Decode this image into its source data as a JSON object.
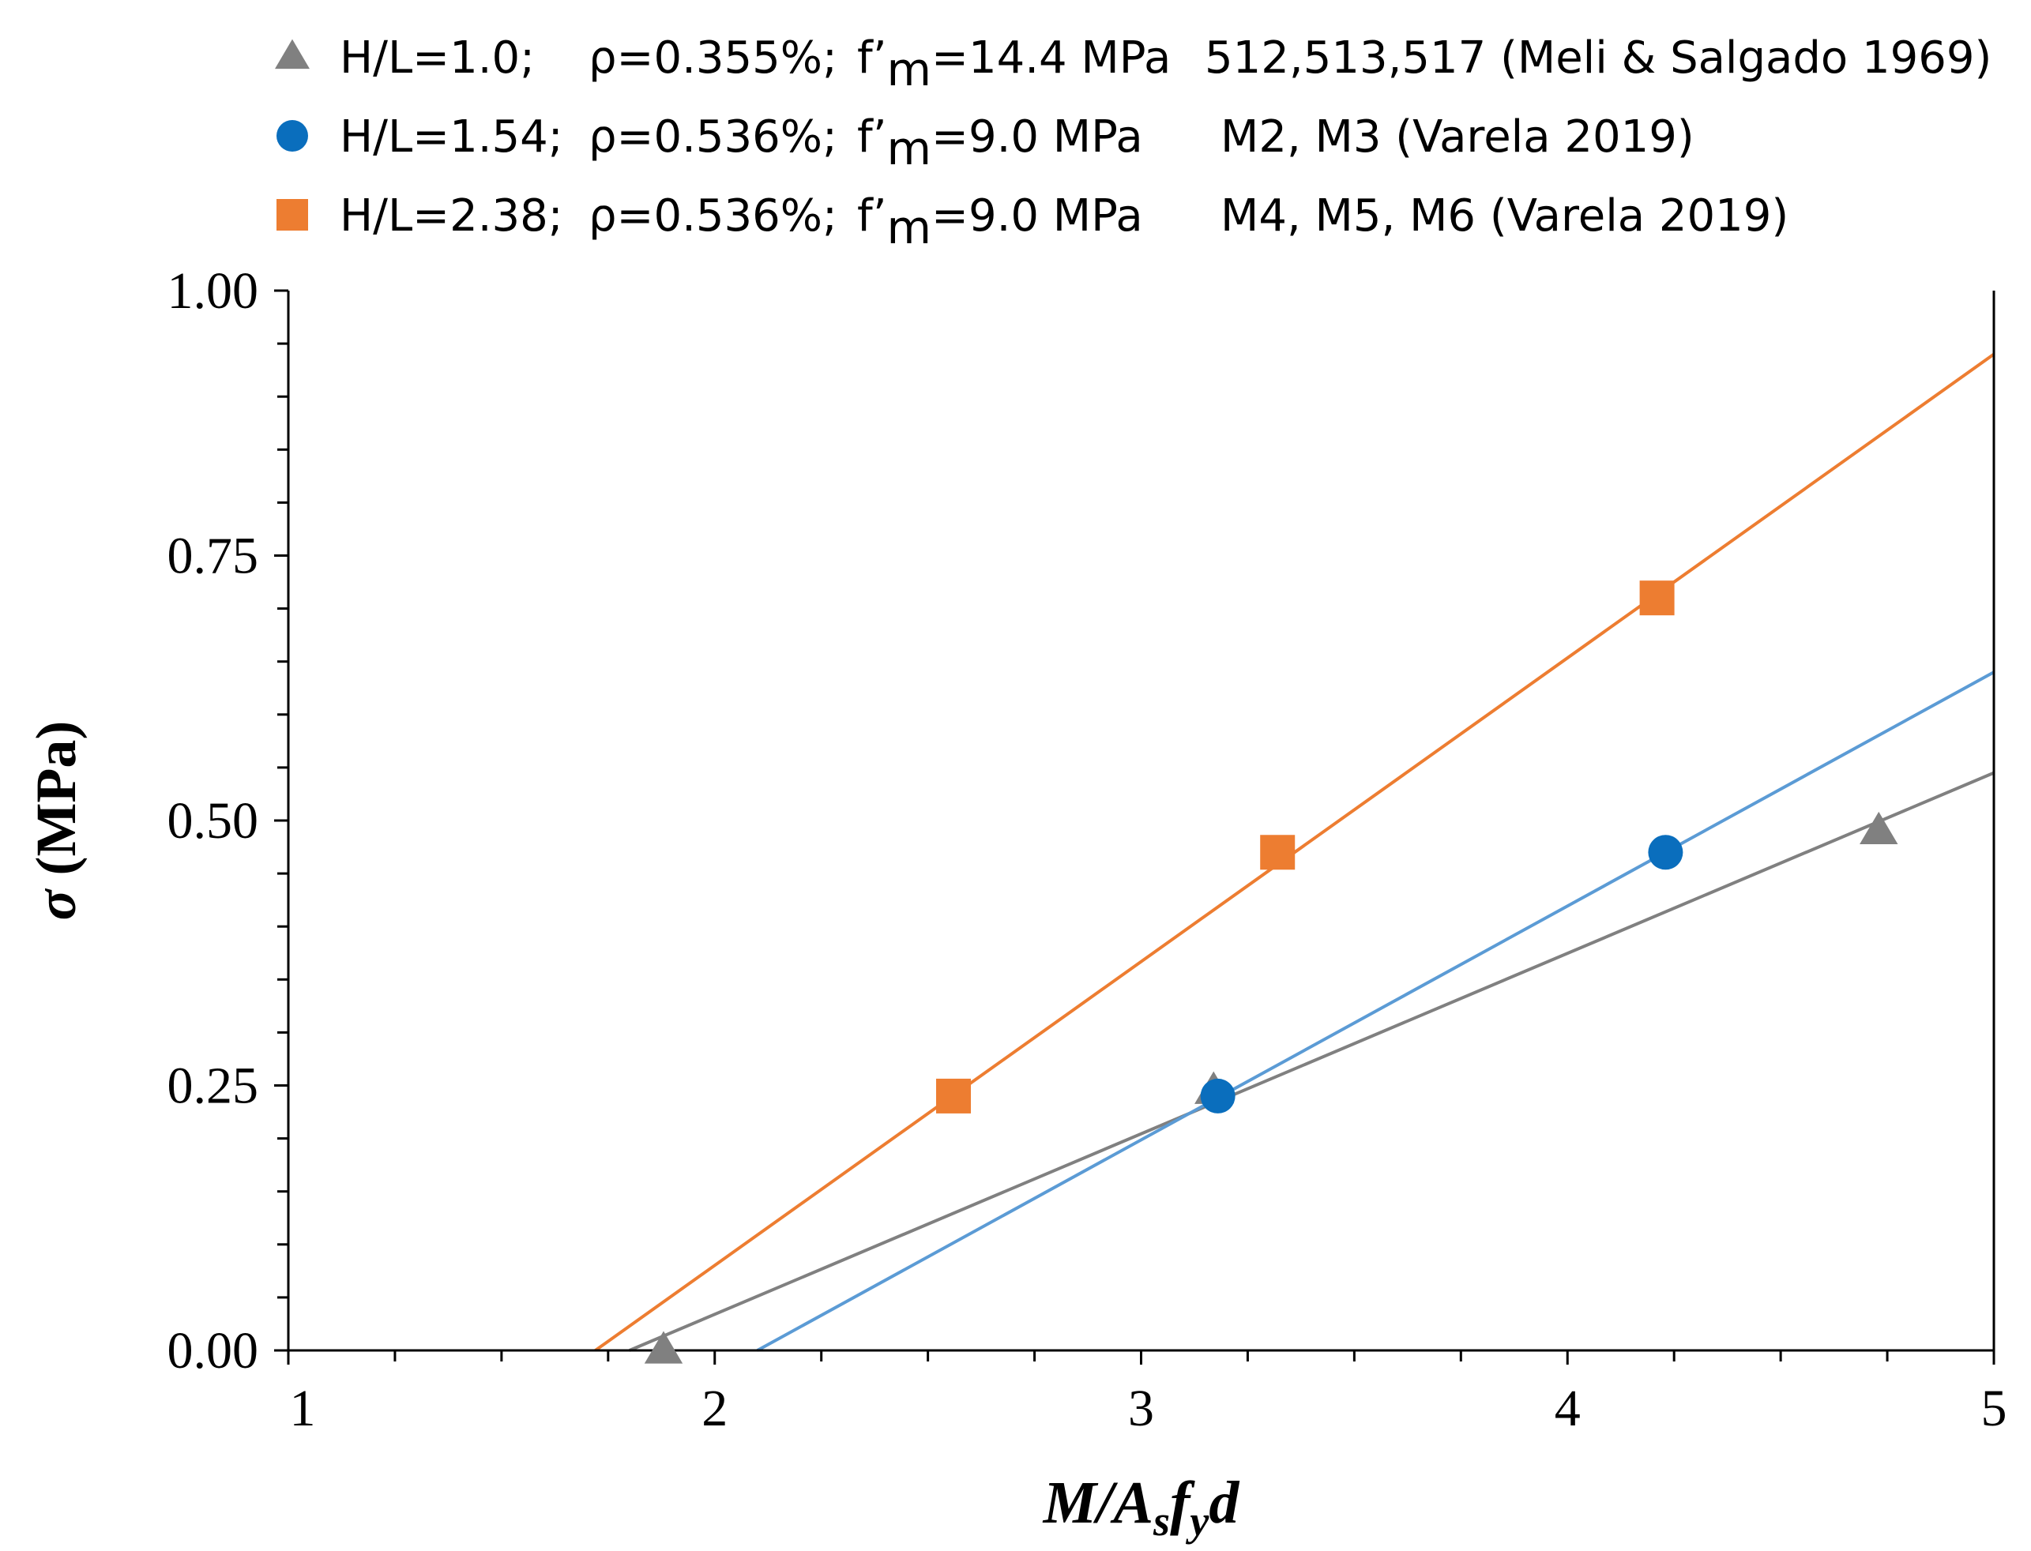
{
  "chart_data": {
    "type": "scatter",
    "title": "",
    "xlabel": "M/A_s f_y d",
    "xlabel_parts": {
      "main": "M/A",
      "sub1": "s",
      "mid": "f",
      "sub2": "y",
      "end": "d"
    },
    "ylabel": "σ (MPa)",
    "ylabel_parts": {
      "symbol": "σ",
      "unit": "(MPa)"
    },
    "xlim": [
      1,
      5
    ],
    "ylim": [
      0,
      1
    ],
    "x_ticks": [
      1,
      2,
      3,
      4,
      5
    ],
    "x_tick_labels": [
      "1",
      "2",
      "3",
      "4",
      "5"
    ],
    "y_ticks": [
      0,
      0.25,
      0.5,
      0.75,
      1
    ],
    "y_tick_labels": [
      "0.00",
      "0.25",
      "0.50",
      "0.75",
      "1.00"
    ],
    "grid": false,
    "legend_position": "top",
    "series": [
      {
        "name": "H/L=1.0; ρ=0.355%; f'm=14.4 MPa 512,513,517 (Meli & Salgado 1969)",
        "legend": {
          "hl": "H/L=1.0;",
          "rho": "ρ=0.355%;",
          "fm_pre": "f’",
          "fm_sub": "m",
          "fm_post": "=14.4 MPa",
          "source": "512,513,517 (Meli & Salgado 1969)"
        },
        "marker": "triangle",
        "marker_color": "#808080",
        "line_color": "#808080",
        "points": [
          {
            "x": 1.88,
            "y": 0.0
          },
          {
            "x": 3.17,
            "y": 0.245
          },
          {
            "x": 4.73,
            "y": 0.49
          }
        ],
        "fit_line": {
          "x1": 1.8,
          "y1": -0.02,
          "x2": 5.0,
          "y2": 0.545
        }
      },
      {
        "name": "H/L=1.54; ρ=0.536%; f'm=9.0 MPa M2, M3 (Varela 2019)",
        "legend": {
          "hl": "H/L=1.54;",
          "rho": "ρ=0.536%;",
          "fm_pre": "f’",
          "fm_sub": "m",
          "fm_post": "=9.0 MPa",
          "source": "M2, M3 (Varela 2019)"
        },
        "marker": "circle",
        "marker_color": "#0A6EBD",
        "line_color": "#5B9BD5",
        "points": [
          {
            "x": 3.18,
            "y": 0.24
          },
          {
            "x": 4.23,
            "y": 0.47
          }
        ],
        "fit_line": {
          "x1": 2.1,
          "y1": 0.0,
          "x2": 5.0,
          "y2": 0.64
        }
      },
      {
        "name": "H/L=2.38; ρ=0.536%; f'm=9.0 MPa M4, M5, M6 (Varela 2019)",
        "legend": {
          "hl": "H/L=2.38;",
          "rho": "ρ=0.536%;",
          "fm_pre": "f’",
          "fm_sub": "m",
          "fm_post": "=9.0 MPa",
          "source": "M4, M5, M6 (Varela 2019)"
        },
        "marker": "square",
        "marker_color": "#ED7D31",
        "line_color": "#ED7D31",
        "points": [
          {
            "x": 2.56,
            "y": 0.24
          },
          {
            "x": 3.32,
            "y": 0.47
          },
          {
            "x": 4.21,
            "y": 0.71
          }
        ],
        "fit_line": {
          "x1": 1.72,
          "y1": 0.0,
          "x2": 5.0,
          "y2": 0.94
        }
      }
    ]
  }
}
